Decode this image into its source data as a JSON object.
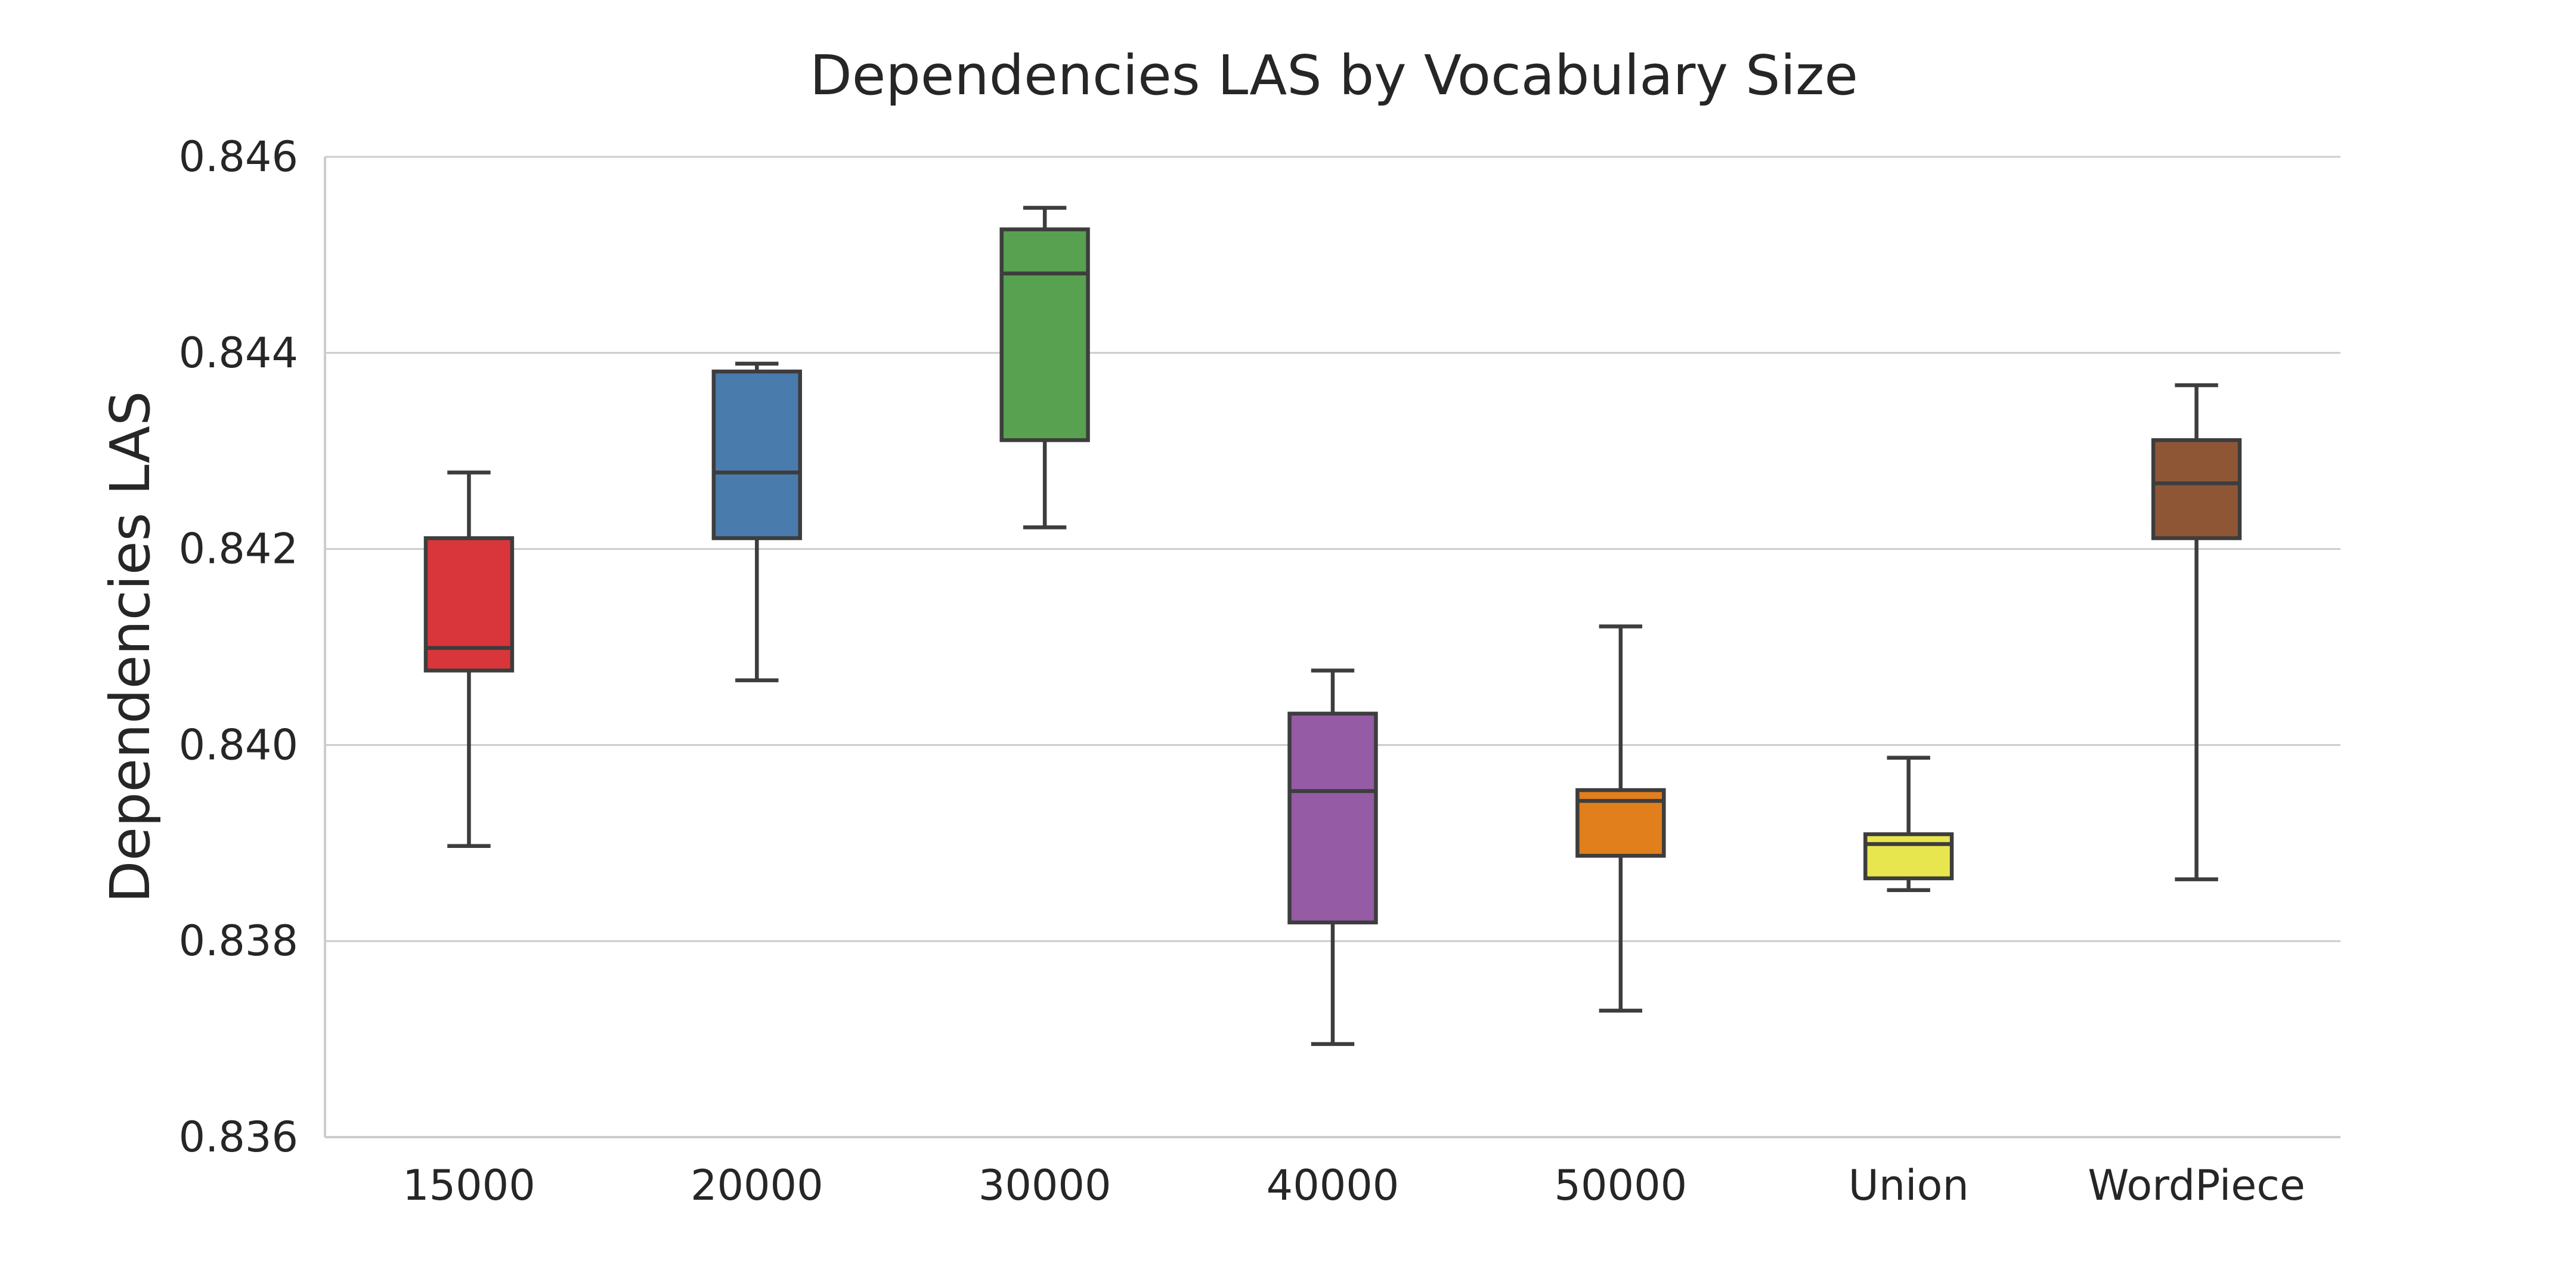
{
  "chart_data": {
    "type": "box",
    "title": "Dependencies LAS by Vocabulary Size",
    "xlabel": "",
    "ylabel": "Dependencies LAS",
    "ylim": [
      0.836,
      0.846
    ],
    "yticks": [
      "0.836",
      "0.838",
      "0.840",
      "0.842",
      "0.844",
      "0.846"
    ],
    "ytick_values": [
      0.836,
      0.838,
      0.84,
      0.842,
      0.844,
      0.846
    ],
    "grid": true,
    "categories": [
      "15000",
      "20000",
      "30000",
      "40000",
      "50000",
      "Union",
      "WordPiece"
    ],
    "colors": [
      "#d8363a",
      "#4a7bad",
      "#58a150",
      "#955ba5",
      "#e07f1b",
      "#e8e64e",
      "#8f5636"
    ],
    "boxes": [
      {
        "whislo": 0.83897,
        "q1": 0.84076,
        "med": 0.84099,
        "q3": 0.84211,
        "whishi": 0.84278
      },
      {
        "whislo": 0.84066,
        "q1": 0.84211,
        "med": 0.84278,
        "q3": 0.84381,
        "whishi": 0.84389
      },
      {
        "whislo": 0.84222,
        "q1": 0.84311,
        "med": 0.84481,
        "q3": 0.84526,
        "whishi": 0.84548
      },
      {
        "whislo": 0.83695,
        "q1": 0.83819,
        "med": 0.83953,
        "q3": 0.84032,
        "whishi": 0.84076
      },
      {
        "whislo": 0.83729,
        "q1": 0.83887,
        "med": 0.83943,
        "q3": 0.83954,
        "whishi": 0.84121
      },
      {
        "whislo": 0.83852,
        "q1": 0.83864,
        "med": 0.83899,
        "q3": 0.83909,
        "whishi": 0.83987
      },
      {
        "whislo": 0.83863,
        "q1": 0.84211,
        "med": 0.84267,
        "q3": 0.84311,
        "whishi": 0.84367
      }
    ]
  }
}
